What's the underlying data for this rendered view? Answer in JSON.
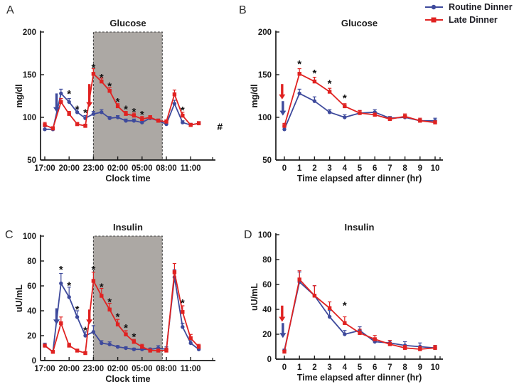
{
  "figure_title": "",
  "colors": {
    "routine": "#3E4A9C",
    "late": "#E02221",
    "shade": "#ACA8A4",
    "shade_border": "#3f3f3f",
    "axis": "#1a1a1a",
    "text": "#1a1a1a"
  },
  "legend": {
    "position": "top-right",
    "items": [
      {
        "label": "Routine Dinner",
        "color_key": "routine",
        "marker": "circle"
      },
      {
        "label": "Late Dinner",
        "color_key": "late",
        "marker": "square"
      }
    ]
  },
  "chart_data": [
    {
      "id": "A",
      "panel_label": "A",
      "type": "line",
      "title": "Glucose",
      "xlabel": "Clock time",
      "ylabel": "mg/dl",
      "ylim": [
        50,
        200
      ],
      "yticks": [
        50,
        100,
        150,
        200
      ],
      "categories": [
        "17:00",
        "18:00",
        "19:00",
        "20:00",
        "21:00",
        "22:00",
        "23:00",
        "00:00",
        "01:00",
        "02:00",
        "03:00",
        "04:00",
        "05:00",
        "06:00",
        "07:00",
        "08:00",
        "09:00",
        "10:00",
        "11:00",
        "12:00"
      ],
      "xticks": {
        "indices": [
          0,
          3,
          6,
          9,
          12,
          15,
          18
        ],
        "labels": [
          "17:00",
          "20:00",
          "23:00",
          "02:00",
          "05:00",
          "08:00",
          "11:00"
        ]
      },
      "grid": false,
      "shaded_region": {
        "from_index": 6,
        "to_index": 14.5
      },
      "series": [
        {
          "name": "Routine Dinner",
          "color_key": "routine",
          "marker": "circle",
          "values": [
            86,
            86,
            128,
            118,
            106,
            99,
            104,
            106,
            99,
            100,
            96,
            96,
            94,
            99,
            96,
            92,
            116,
            94,
            91,
            93
          ],
          "err": [
            3,
            2,
            5,
            4,
            4,
            3,
            3,
            3,
            2,
            2,
            2,
            2,
            2,
            2,
            2,
            2,
            4,
            2,
            2,
            2
          ]
        },
        {
          "name": "Late Dinner",
          "color_key": "late",
          "marker": "square",
          "values": [
            91,
            87,
            118,
            104,
            92,
            90,
            151,
            142,
            131,
            113,
            104,
            102,
            98,
            100,
            96,
            95,
            127,
            102,
            91,
            93
          ],
          "err": [
            3,
            2,
            4,
            3,
            2,
            2,
            6,
            4,
            4,
            3,
            3,
            3,
            3,
            2,
            2,
            2,
            5,
            4,
            2,
            2
          ]
        }
      ],
      "significance_marks": [
        {
          "i": 3,
          "v": 130
        },
        {
          "i": 4,
          "v": 112
        },
        {
          "i": 5,
          "v": 108
        },
        {
          "i": 6,
          "v": 161
        },
        {
          "i": 7,
          "v": 149
        },
        {
          "i": 8,
          "v": 139
        },
        {
          "i": 9,
          "v": 121
        },
        {
          "i": 10,
          "v": 112
        },
        {
          "i": 11,
          "v": 109
        },
        {
          "i": 12,
          "v": 106
        },
        {
          "i": 17,
          "v": 111
        }
      ],
      "arrows": [
        {
          "color_key": "routine",
          "i": 1.45,
          "v_top": 128,
          "v_tip": 106
        },
        {
          "color_key": "late",
          "i": 5.5,
          "v_top": 139,
          "v_tip": 112
        }
      ],
      "annotations": [
        {
          "text": "#",
          "i": 21.6,
          "v": 89
        }
      ]
    },
    {
      "id": "B",
      "panel_label": "B",
      "type": "line",
      "title": "Glucose",
      "xlabel": "Time elapsed after dinner (hr)",
      "ylabel": "mg/dl",
      "ylim": [
        50,
        200
      ],
      "yticks": [
        50,
        100,
        150,
        200
      ],
      "categories": [
        "0",
        "1",
        "2",
        "3",
        "4",
        "5",
        "6",
        "7",
        "8",
        "9",
        "10"
      ],
      "xticks": {
        "indices": [
          0,
          1,
          2,
          3,
          4,
          5,
          6,
          7,
          8,
          9,
          10
        ],
        "labels": [
          "0",
          "1",
          "2",
          "3",
          "4",
          "5",
          "6",
          "7",
          "8",
          "9",
          "10"
        ]
      },
      "grid": false,
      "shaded_region": null,
      "series": [
        {
          "name": "Routine Dinner",
          "color_key": "routine",
          "marker": "circle",
          "values": [
            86,
            128,
            119,
            106,
            100,
            105,
            106,
            99,
            100,
            96,
            96
          ],
          "err": [
            3,
            5,
            5,
            3,
            3,
            3,
            3,
            2,
            2,
            2,
            3
          ]
        },
        {
          "name": "Late Dinner",
          "color_key": "late",
          "marker": "square",
          "values": [
            90,
            151,
            142,
            130,
            113,
            105,
            103,
            98,
            101,
            96,
            94
          ],
          "err": [
            3,
            6,
            5,
            4,
            3,
            3,
            2,
            2,
            3,
            3,
            2
          ]
        }
      ],
      "significance_marks": [
        {
          "i": 1,
          "v": 165
        },
        {
          "i": 2,
          "v": 154
        },
        {
          "i": 3,
          "v": 142
        },
        {
          "i": 4,
          "v": 125
        }
      ],
      "arrows": [
        {
          "color_key": "late",
          "i": -0.15,
          "v_top": 139,
          "v_tip": 121
        },
        {
          "color_key": "routine",
          "i": -0.1,
          "v_top": 119,
          "v_tip": 102
        }
      ],
      "annotations": []
    },
    {
      "id": "C",
      "panel_label": "C",
      "type": "line",
      "title": "Insulin",
      "xlabel": "Clock time",
      "ylabel": "uU/mL",
      "ylim": [
        0,
        100
      ],
      "yticks": [
        0,
        20,
        40,
        60,
        80,
        100
      ],
      "categories": [
        "17:00",
        "18:00",
        "19:00",
        "20:00",
        "21:00",
        "22:00",
        "23:00",
        "00:00",
        "01:00",
        "02:00",
        "03:00",
        "04:00",
        "05:00",
        "06:00",
        "07:00",
        "08:00",
        "09:00",
        "10:00",
        "11:00",
        "12:00"
      ],
      "xticks": {
        "indices": [
          0,
          3,
          6,
          9,
          12,
          15,
          18
        ],
        "labels": [
          "17:00",
          "20:00",
          "23:00",
          "02:00",
          "05:00",
          "08:00",
          "11:00"
        ]
      },
      "grid": false,
      "shaded_region": {
        "from_index": 6,
        "to_index": 14.5
      },
      "series": [
        {
          "name": "Routine Dinner",
          "color_key": "routine",
          "marker": "circle",
          "values": [
            12,
            7,
            62,
            51,
            35,
            20,
            23,
            14,
            13,
            11,
            10,
            9,
            9,
            9,
            10,
            9,
            67,
            27,
            14,
            9
          ],
          "err": [
            2,
            1,
            8,
            8,
            5,
            3,
            5,
            2,
            2,
            1,
            1,
            1,
            1,
            1,
            2,
            2,
            6,
            3,
            2,
            1
          ]
        },
        {
          "name": "Late Dinner",
          "color_key": "late",
          "marker": "square",
          "values": [
            12,
            7,
            30,
            12,
            8,
            6,
            64,
            52,
            41,
            29,
            21,
            15,
            11,
            8,
            8,
            8,
            71,
            39,
            18,
            11
          ],
          "err": [
            1,
            1,
            5,
            2,
            1,
            1,
            7,
            6,
            5,
            4,
            3,
            2,
            2,
            1,
            1,
            2,
            7,
            5,
            3,
            2
          ]
        }
      ],
      "significance_marks": [
        {
          "i": 2,
          "v": 75
        },
        {
          "i": 3,
          "v": 62
        },
        {
          "i": 4,
          "v": 43
        },
        {
          "i": 5,
          "v": 26
        },
        {
          "i": 6,
          "v": 75
        },
        {
          "i": 7,
          "v": 61
        },
        {
          "i": 8,
          "v": 49
        },
        {
          "i": 9,
          "v": 37
        },
        {
          "i": 10,
          "v": 28
        },
        {
          "i": 11,
          "v": 21
        },
        {
          "i": 17,
          "v": 48
        }
      ],
      "arrows": [
        {
          "color_key": "routine",
          "i": 1.45,
          "v_top": 42,
          "v_tip": 29
        },
        {
          "color_key": "late",
          "i": 5.5,
          "v_top": 41,
          "v_tip": 29
        }
      ],
      "annotations": []
    },
    {
      "id": "D",
      "panel_label": "D",
      "type": "line",
      "title": "Insulin",
      "xlabel": "Time elapsed after dinner (hr)",
      "ylabel": "uU/mL",
      "ylim": [
        0,
        100
      ],
      "yticks": [
        0,
        20,
        40,
        60,
        80,
        100
      ],
      "categories": [
        "0",
        "1",
        "2",
        "3",
        "4",
        "5",
        "6",
        "7",
        "8",
        "9",
        "10"
      ],
      "xticks": {
        "indices": [
          0,
          1,
          2,
          3,
          4,
          5,
          6,
          7,
          8,
          9,
          10
        ],
        "labels": [
          "0",
          "1",
          "2",
          "3",
          "4",
          "5",
          "6",
          "7",
          "8",
          "9",
          "10"
        ]
      },
      "grid": false,
      "shaded_region": null,
      "series": [
        {
          "name": "Routine Dinner",
          "color_key": "routine",
          "marker": "circle",
          "values": [
            7,
            62,
            51,
            34,
            20,
            23,
            14,
            13,
            11,
            10,
            9
          ],
          "err": [
            1,
            8,
            8,
            5,
            3,
            3,
            2,
            2,
            3,
            3,
            2
          ]
        },
        {
          "name": "Late Dinner",
          "color_key": "late",
          "marker": "square",
          "values": [
            6,
            64,
            51,
            41,
            29,
            21,
            16,
            12,
            9,
            8,
            9
          ],
          "err": [
            1,
            7,
            8,
            5,
            5,
            3,
            3,
            3,
            2,
            2,
            2
          ]
        }
      ],
      "significance_marks": [
        {
          "i": 4,
          "v": 45
        }
      ],
      "arrows": [
        {
          "color_key": "late",
          "i": -0.15,
          "v_top": 43,
          "v_tip": 30
        },
        {
          "color_key": "routine",
          "i": -0.1,
          "v_top": 29,
          "v_tip": 17
        }
      ],
      "annotations": []
    }
  ]
}
